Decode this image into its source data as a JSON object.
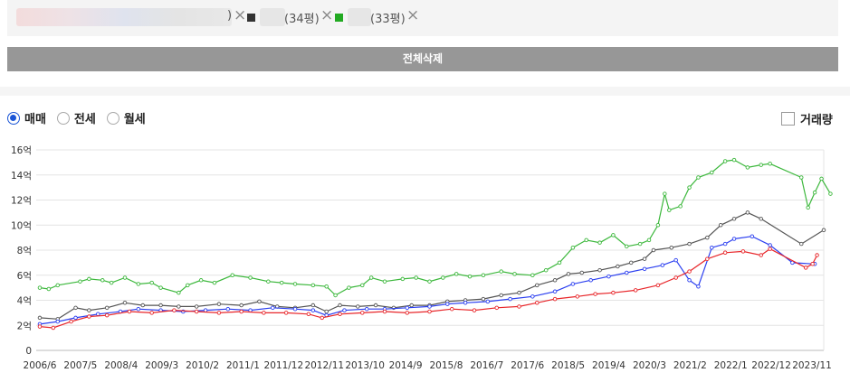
{
  "filters": {
    "chip1_suffix": ")",
    "chip2_suffix": "(34평)",
    "chip3_suffix": "(33평)",
    "remove_icon": "×",
    "delete_all": "전체삭제"
  },
  "tabs": {
    "sale": "매매",
    "jeonse": "전세",
    "monthly": "월세",
    "selected": "sale"
  },
  "volume_label": "거래량",
  "colors": {
    "green": "#3db83d",
    "gray": "#555555",
    "blue": "#2b3ff0",
    "red": "#e8262a"
  },
  "chart_data": {
    "type": "line",
    "ylim": [
      0,
      16
    ],
    "y_ticks": [
      0,
      2,
      4,
      6,
      8,
      10,
      12,
      14,
      16
    ],
    "y_tick_labels": [
      "0",
      "2억",
      "4억",
      "6억",
      "8억",
      "10억",
      "12억",
      "14억",
      "16억"
    ],
    "x_tick_labels": [
      "2006/6",
      "2007/5",
      "2008/4",
      "2009/3",
      "2010/2",
      "2011/1",
      "2011/12",
      "2012/11",
      "2013/10",
      "2014/9",
      "2015/8",
      "2016/7",
      "2017/6",
      "2018/5",
      "2019/4",
      "2020/3",
      "2021/2",
      "2022/1",
      "2022/12",
      "2023/11"
    ],
    "x_range": [
      2006.42,
      2024.0
    ],
    "series": [
      {
        "color": "#3db83d",
        "points": [
          [
            2006.5,
            5.0
          ],
          [
            2006.7,
            4.9
          ],
          [
            2006.9,
            5.2
          ],
          [
            2007.4,
            5.5
          ],
          [
            2007.6,
            5.7
          ],
          [
            2007.9,
            5.6
          ],
          [
            2008.1,
            5.4
          ],
          [
            2008.4,
            5.8
          ],
          [
            2008.7,
            5.3
          ],
          [
            2009.0,
            5.4
          ],
          [
            2009.2,
            5.0
          ],
          [
            2009.6,
            4.6
          ],
          [
            2009.8,
            5.2
          ],
          [
            2010.1,
            5.6
          ],
          [
            2010.4,
            5.4
          ],
          [
            2010.8,
            6.0
          ],
          [
            2011.2,
            5.8
          ],
          [
            2011.6,
            5.5
          ],
          [
            2011.9,
            5.4
          ],
          [
            2012.2,
            5.3
          ],
          [
            2012.6,
            5.2
          ],
          [
            2012.9,
            5.1
          ],
          [
            2013.1,
            4.4
          ],
          [
            2013.4,
            5.0
          ],
          [
            2013.7,
            5.2
          ],
          [
            2013.9,
            5.8
          ],
          [
            2014.2,
            5.5
          ],
          [
            2014.6,
            5.7
          ],
          [
            2014.9,
            5.8
          ],
          [
            2015.2,
            5.5
          ],
          [
            2015.5,
            5.8
          ],
          [
            2015.8,
            6.1
          ],
          [
            2016.1,
            5.9
          ],
          [
            2016.4,
            6.0
          ],
          [
            2016.8,
            6.3
          ],
          [
            2017.1,
            6.1
          ],
          [
            2017.5,
            6.0
          ],
          [
            2017.8,
            6.4
          ],
          [
            2018.1,
            7.0
          ],
          [
            2018.4,
            8.2
          ],
          [
            2018.7,
            8.8
          ],
          [
            2019.0,
            8.6
          ],
          [
            2019.3,
            9.2
          ],
          [
            2019.6,
            8.3
          ],
          [
            2019.9,
            8.5
          ],
          [
            2020.1,
            8.8
          ],
          [
            2020.3,
            10.0
          ],
          [
            2020.45,
            12.5
          ],
          [
            2020.55,
            11.2
          ],
          [
            2020.8,
            11.5
          ],
          [
            2021.0,
            13.0
          ],
          [
            2021.2,
            13.8
          ],
          [
            2021.5,
            14.2
          ],
          [
            2021.8,
            15.1
          ],
          [
            2022.0,
            15.2
          ],
          [
            2022.3,
            14.6
          ],
          [
            2022.6,
            14.8
          ],
          [
            2022.8,
            14.9
          ],
          [
            2023.5,
            13.8
          ],
          [
            2023.65,
            11.4
          ],
          [
            2023.8,
            12.6
          ],
          [
            2023.95,
            13.7
          ],
          [
            2024.15,
            12.5
          ]
        ]
      },
      {
        "color": "#555555",
        "points": [
          [
            2006.5,
            2.6
          ],
          [
            2006.9,
            2.5
          ],
          [
            2007.3,
            3.4
          ],
          [
            2007.6,
            3.2
          ],
          [
            2008.0,
            3.4
          ],
          [
            2008.4,
            3.8
          ],
          [
            2008.8,
            3.6
          ],
          [
            2009.2,
            3.6
          ],
          [
            2009.6,
            3.5
          ],
          [
            2010.0,
            3.5
          ],
          [
            2010.5,
            3.7
          ],
          [
            2011.0,
            3.6
          ],
          [
            2011.4,
            3.9
          ],
          [
            2011.8,
            3.5
          ],
          [
            2012.2,
            3.4
          ],
          [
            2012.6,
            3.6
          ],
          [
            2012.9,
            3.1
          ],
          [
            2013.2,
            3.6
          ],
          [
            2013.6,
            3.5
          ],
          [
            2014.0,
            3.6
          ],
          [
            2014.4,
            3.4
          ],
          [
            2014.8,
            3.6
          ],
          [
            2015.2,
            3.6
          ],
          [
            2015.6,
            3.9
          ],
          [
            2016.0,
            4.0
          ],
          [
            2016.4,
            4.1
          ],
          [
            2016.8,
            4.4
          ],
          [
            2017.2,
            4.6
          ],
          [
            2017.6,
            5.2
          ],
          [
            2018.0,
            5.6
          ],
          [
            2018.3,
            6.1
          ],
          [
            2018.6,
            6.2
          ],
          [
            2019.0,
            6.4
          ],
          [
            2019.4,
            6.7
          ],
          [
            2019.7,
            7.0
          ],
          [
            2020.0,
            7.3
          ],
          [
            2020.2,
            8.0
          ],
          [
            2020.6,
            8.2
          ],
          [
            2021.0,
            8.5
          ],
          [
            2021.4,
            9.0
          ],
          [
            2021.7,
            10.0
          ],
          [
            2022.0,
            10.5
          ],
          [
            2022.3,
            11.0
          ],
          [
            2022.6,
            10.5
          ],
          [
            2023.5,
            8.5
          ],
          [
            2024.0,
            9.6
          ]
        ]
      },
      {
        "color": "#2b3ff0",
        "points": [
          [
            2006.5,
            2.1
          ],
          [
            2006.9,
            2.3
          ],
          [
            2007.3,
            2.6
          ],
          [
            2007.8,
            2.9
          ],
          [
            2008.3,
            3.1
          ],
          [
            2008.7,
            3.3
          ],
          [
            2009.2,
            3.2
          ],
          [
            2009.7,
            3.1
          ],
          [
            2010.2,
            3.2
          ],
          [
            2010.7,
            3.3
          ],
          [
            2011.2,
            3.2
          ],
          [
            2011.7,
            3.4
          ],
          [
            2012.2,
            3.3
          ],
          [
            2012.6,
            3.2
          ],
          [
            2012.9,
            2.8
          ],
          [
            2013.3,
            3.2
          ],
          [
            2013.8,
            3.3
          ],
          [
            2014.2,
            3.3
          ],
          [
            2014.7,
            3.4
          ],
          [
            2015.2,
            3.5
          ],
          [
            2015.6,
            3.7
          ],
          [
            2016.0,
            3.8
          ],
          [
            2016.5,
            3.9
          ],
          [
            2017.0,
            4.1
          ],
          [
            2017.5,
            4.3
          ],
          [
            2018.0,
            4.7
          ],
          [
            2018.4,
            5.3
          ],
          [
            2018.8,
            5.6
          ],
          [
            2019.2,
            5.9
          ],
          [
            2019.6,
            6.2
          ],
          [
            2020.0,
            6.5
          ],
          [
            2020.4,
            6.8
          ],
          [
            2020.7,
            7.2
          ],
          [
            2021.0,
            5.6
          ],
          [
            2021.2,
            5.1
          ],
          [
            2021.5,
            8.2
          ],
          [
            2021.8,
            8.5
          ],
          [
            2022.0,
            8.9
          ],
          [
            2022.4,
            9.1
          ],
          [
            2022.8,
            8.4
          ],
          [
            2023.3,
            7.0
          ],
          [
            2023.8,
            6.9
          ]
        ]
      },
      {
        "color": "#e8262a",
        "points": [
          [
            2006.5,
            1.9
          ],
          [
            2006.8,
            1.8
          ],
          [
            2007.2,
            2.3
          ],
          [
            2007.6,
            2.7
          ],
          [
            2008.0,
            2.8
          ],
          [
            2008.5,
            3.1
          ],
          [
            2009.0,
            3.0
          ],
          [
            2009.5,
            3.2
          ],
          [
            2010.0,
            3.1
          ],
          [
            2010.5,
            3.0
          ],
          [
            2011.0,
            3.1
          ],
          [
            2011.5,
            3.0
          ],
          [
            2012.0,
            3.0
          ],
          [
            2012.5,
            2.9
          ],
          [
            2012.8,
            2.6
          ],
          [
            2013.2,
            2.9
          ],
          [
            2013.7,
            3.0
          ],
          [
            2014.2,
            3.1
          ],
          [
            2014.7,
            3.0
          ],
          [
            2015.2,
            3.1
          ],
          [
            2015.7,
            3.3
          ],
          [
            2016.2,
            3.2
          ],
          [
            2016.7,
            3.4
          ],
          [
            2017.2,
            3.5
          ],
          [
            2017.6,
            3.8
          ],
          [
            2018.0,
            4.1
          ],
          [
            2018.5,
            4.3
          ],
          [
            2018.9,
            4.5
          ],
          [
            2019.3,
            4.6
          ],
          [
            2019.8,
            4.8
          ],
          [
            2020.3,
            5.2
          ],
          [
            2020.7,
            5.8
          ],
          [
            2021.0,
            6.3
          ],
          [
            2021.4,
            7.3
          ],
          [
            2021.8,
            7.8
          ],
          [
            2022.2,
            7.9
          ],
          [
            2022.6,
            7.6
          ],
          [
            2022.8,
            8.1
          ],
          [
            2023.6,
            6.6
          ],
          [
            2023.75,
            6.9
          ],
          [
            2023.85,
            7.6
          ]
        ]
      }
    ]
  }
}
